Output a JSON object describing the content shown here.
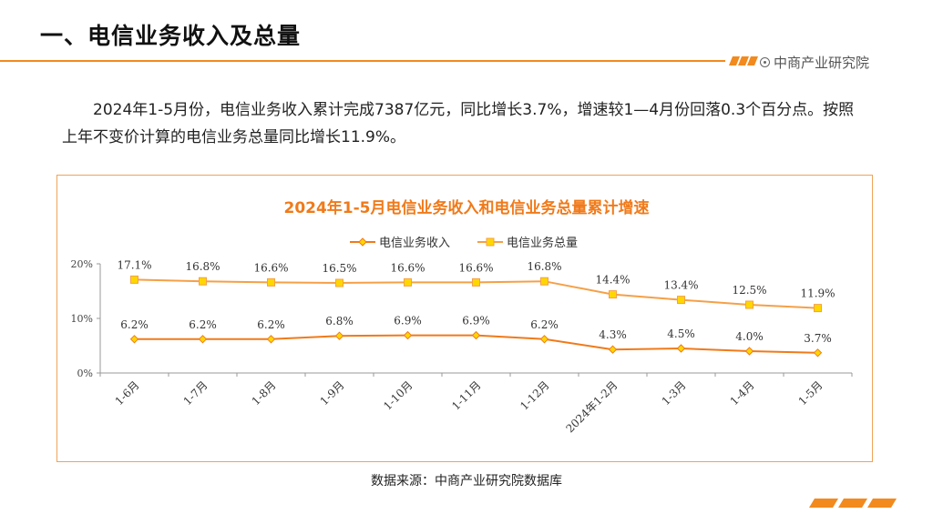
{
  "header": {
    "title": "一、电信业务收入及总量",
    "brand": "中商产业研究院"
  },
  "body": {
    "paragraph": "2024年1-5月份，电信业务收入累计完成7387亿元，同比增长3.7%，增速较1—4月份回落0.3个百分点。按照上年不变价计算的电信业务总量同比增长11.9%。"
  },
  "chart_data": {
    "type": "line",
    "title": "2024年1-5月电信业务收入和电信业务总量累计增速",
    "categories": [
      "1-6月",
      "1-7月",
      "1-8月",
      "1-9月",
      "1-10月",
      "1-11月",
      "1-12月",
      "2024年1-2月",
      "1-3月",
      "1-4月",
      "1-5月"
    ],
    "series": [
      {
        "name": "电信业务收入",
        "values": [
          6.2,
          6.2,
          6.2,
          6.8,
          6.9,
          6.9,
          6.2,
          4.3,
          4.5,
          4.0,
          3.7
        ],
        "labels": [
          "6.2%",
          "6.2%",
          "6.2%",
          "6.8%",
          "6.9%",
          "6.9%",
          "6.2%",
          "4.3%",
          "4.5%",
          "4.0%",
          "3.7%"
        ],
        "color": "#f07a1a",
        "marker": "diamond"
      },
      {
        "name": "电信业务总量",
        "values": [
          17.1,
          16.8,
          16.6,
          16.5,
          16.6,
          16.6,
          16.8,
          14.4,
          13.4,
          12.5,
          11.9
        ],
        "labels": [
          "17.1%",
          "16.8%",
          "16.6%",
          "16.5%",
          "16.6%",
          "16.6%",
          "16.8%",
          "14.4%",
          "13.4%",
          "12.5%",
          "11.9%"
        ],
        "color": "#f5a047",
        "marker": "square",
        "marker_fill": "#ffd700"
      }
    ],
    "yticks": [
      "0%",
      "10%",
      "20%"
    ],
    "ylim": [
      0,
      20
    ],
    "grid": false,
    "legend_position": "top-center"
  },
  "footer": {
    "source": "数据来源：中商产业研究院数据库"
  }
}
